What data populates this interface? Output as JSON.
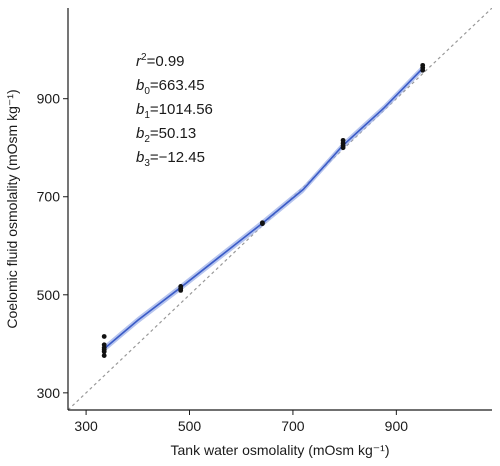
{
  "chart_data": {
    "type": "scatter",
    "xlabel": "Tank water osmolality (mOsm kg⁻¹)",
    "ylabel": "Coelomic fluid osmolality (mOsm kg⁻¹)",
    "xlim": [
      265,
      1085
    ],
    "ylim": [
      265,
      1085
    ],
    "xticks": [
      300,
      500,
      700,
      900
    ],
    "yticks": [
      300,
      500,
      700,
      900
    ],
    "grid": false,
    "points": [
      {
        "x": 335,
        "y": 415
      },
      {
        "x": 335,
        "y": 398
      },
      {
        "x": 335,
        "y": 392
      },
      {
        "x": 335,
        "y": 388
      },
      {
        "x": 335,
        "y": 384
      },
      {
        "x": 335,
        "y": 376
      },
      {
        "x": 483,
        "y": 517
      },
      {
        "x": 483,
        "y": 513
      },
      {
        "x": 483,
        "y": 509
      },
      {
        "x": 641,
        "y": 647
      },
      {
        "x": 641,
        "y": 645
      },
      {
        "x": 797,
        "y": 815
      },
      {
        "x": 797,
        "y": 809
      },
      {
        "x": 797,
        "y": 804
      },
      {
        "x": 797,
        "y": 800
      },
      {
        "x": 951,
        "y": 968
      },
      {
        "x": 951,
        "y": 963
      },
      {
        "x": 951,
        "y": 958
      }
    ],
    "fit_curve": {
      "x": [
        335,
        400,
        483,
        560,
        641,
        720,
        797,
        875,
        951
      ],
      "y": [
        390,
        448,
        515,
        579,
        646,
        715,
        805,
        880,
        962
      ],
      "band_halfwidth": 7
    },
    "reference_line": {
      "style": "dashed",
      "x": [
        265,
        1085
      ],
      "y": [
        265,
        1085
      ]
    },
    "annotations": [
      {
        "var": "r",
        "sup": "2",
        "sub": "",
        "value": "=0.99"
      },
      {
        "var": "b",
        "sup": "",
        "sub": "0",
        "value": "=663.45"
      },
      {
        "var": "b",
        "sup": "",
        "sub": "1",
        "value": "=1014.56"
      },
      {
        "var": "b",
        "sup": "",
        "sub": "2",
        "value": "=50.13"
      },
      {
        "var": "b",
        "sup": "",
        "sub": "3",
        "value": "=−12.45"
      }
    ],
    "colors": {
      "points": "#111111",
      "fit_line": "#3a5bc7",
      "fit_band": "#9db0e8",
      "reference_line": "#999999",
      "axis": "#1a1a1a"
    }
  }
}
